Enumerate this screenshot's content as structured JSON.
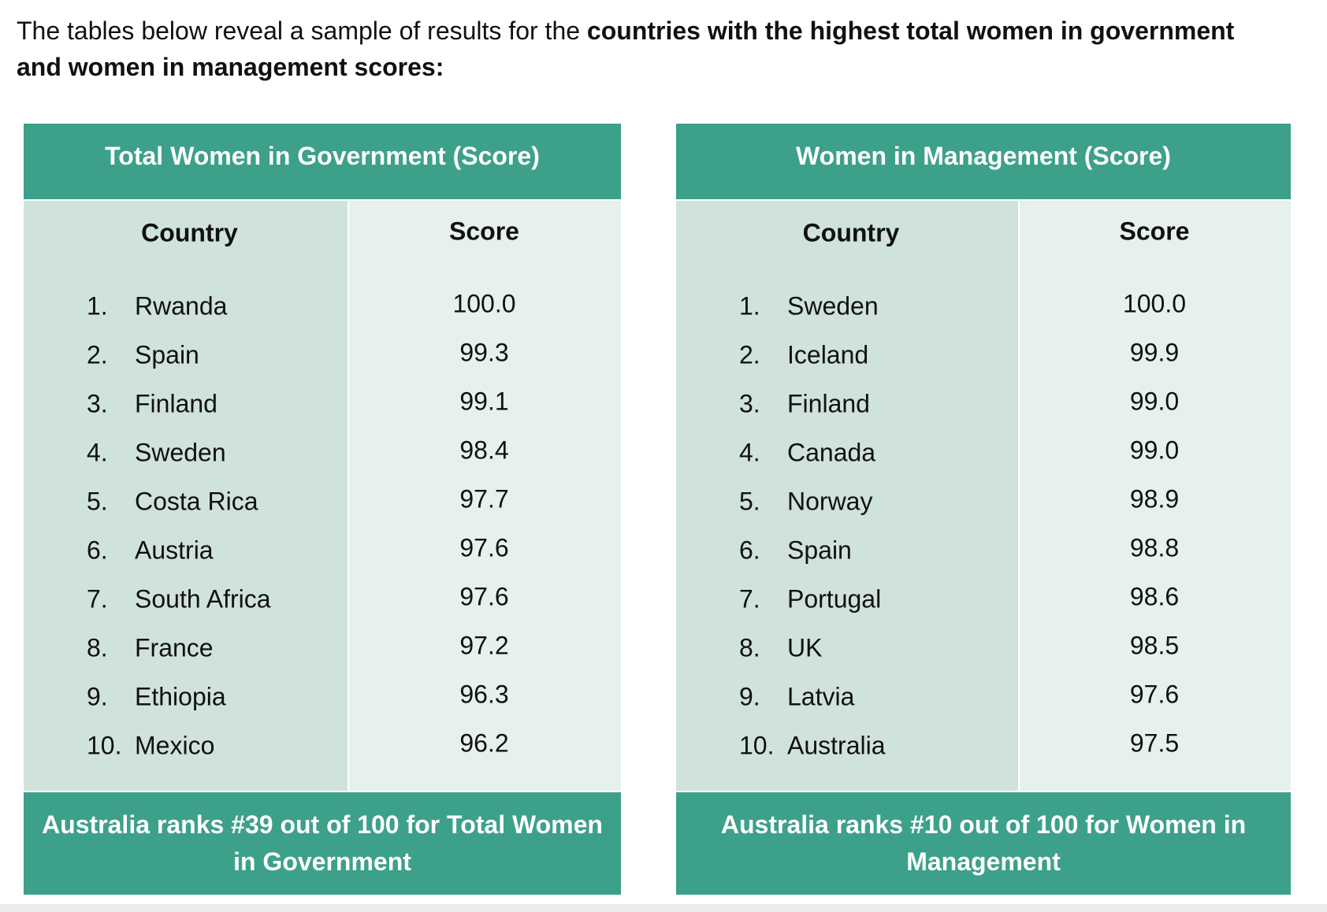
{
  "intro": {
    "plain": "The tables below reveal a sample of results for the ",
    "bold": "countries with the highest total women in government and women in management scores:"
  },
  "tables": [
    {
      "title": "Total Women in Government (Score)",
      "headers": [
        "Country",
        "Score"
      ],
      "rows": [
        [
          "1.",
          "Rwanda",
          "100.0"
        ],
        [
          "2.",
          "Spain",
          "99.3"
        ],
        [
          "3.",
          "Finland",
          "99.1"
        ],
        [
          "4.",
          "Sweden",
          "98.4"
        ],
        [
          "5.",
          "Costa Rica",
          "97.7"
        ],
        [
          "6.",
          "Austria",
          "97.6"
        ],
        [
          "7.",
          "South Africa",
          "97.6"
        ],
        [
          "8.",
          "France",
          "97.2"
        ],
        [
          "9.",
          "Ethiopia",
          "96.3"
        ],
        [
          "10.",
          "Mexico",
          "96.2"
        ]
      ],
      "footer": "Australia ranks #39 out of 100 for Total Women in Government"
    },
    {
      "title": "Women in Management (Score)",
      "headers": [
        "Country",
        "Score"
      ],
      "rows": [
        [
          "1.",
          "Sweden",
          "100.0"
        ],
        [
          "2.",
          "Iceland",
          "99.9"
        ],
        [
          "3.",
          "Finland",
          "99.0"
        ],
        [
          "4.",
          "Canada",
          "99.0"
        ],
        [
          "5.",
          "Norway",
          "98.9"
        ],
        [
          "6.",
          "Spain",
          "98.8"
        ],
        [
          "7.",
          "Portugal",
          "98.6"
        ],
        [
          "8.",
          "UK",
          "98.5"
        ],
        [
          "9.",
          "Latvia",
          "97.6"
        ],
        [
          "10.",
          "Australia",
          "97.5"
        ]
      ],
      "footer": "Australia ranks #10 out of 100 for Women in Management"
    }
  ]
}
